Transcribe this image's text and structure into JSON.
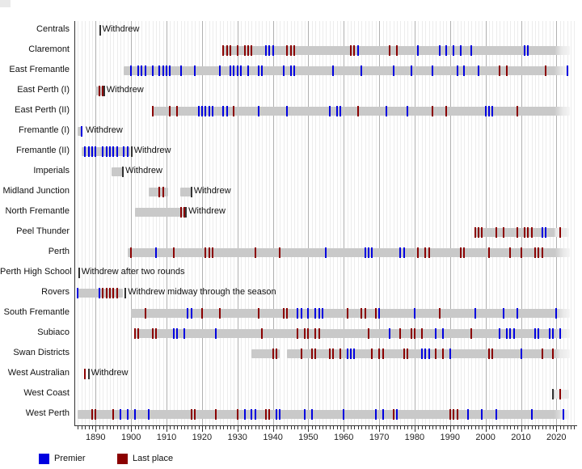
{
  "legend": {
    "premier_label": "Premier",
    "last_label": "Last place"
  },
  "colors": {
    "premier": "#0000e0",
    "last_place": "#8b0000",
    "bar": "#c9c9c9",
    "bar_recent": "#e9e9e9",
    "withdrew_tick": "#333333",
    "grid_minor": "#ececec",
    "grid_major": "#b0b0b0",
    "axis_line": "#333333",
    "text": "#111111"
  },
  "axis": {
    "year_start": 1885,
    "year_end": 2025.8,
    "decade_labels": [
      "1890",
      "1900",
      "1910",
      "1920",
      "1930",
      "1940",
      "1950",
      "1960",
      "1970",
      "1980",
      "1990",
      "2000",
      "2010",
      "2020"
    ],
    "decade_values": [
      1890,
      1900,
      1910,
      1920,
      1930,
      1940,
      1950,
      1960,
      1970,
      1980,
      1990,
      2000,
      2010,
      2020
    ]
  },
  "chart_data": {
    "type": "timeline-gantt",
    "unit": "year",
    "recent_shade_from": 2019.4,
    "ongoing_end": 2023.7,
    "clubs": [
      {
        "name": "Centrals",
        "segments": [],
        "ongoing": false,
        "premier_years": [],
        "last_years": [],
        "withdrew": {
          "year": 1891.2,
          "label": "Withdrew",
          "tick": true
        }
      },
      {
        "name": "Claremont",
        "segments": [
          [
            1925.8,
            2023.7
          ]
        ],
        "ongoing": true,
        "premier_years": [
          1938,
          1939,
          1940,
          1964,
          1981,
          1987,
          1989,
          1991,
          1993,
          1996,
          2011,
          2012
        ],
        "last_years": [
          1926,
          1927,
          1928,
          1930,
          1932,
          1933,
          1934,
          1944,
          1945,
          1946,
          1962,
          1963,
          1973,
          1975
        ]
      },
      {
        "name": "East Fremantle",
        "segments": [
          [
            1898,
            2023.7
          ]
        ],
        "ongoing": true,
        "premier_years": [
          1900,
          1902,
          1903,
          1904,
          1906,
          1908,
          1909,
          1910,
          1911,
          1914,
          1918,
          1925,
          1928,
          1929,
          1930,
          1931,
          1933,
          1936,
          1937,
          1943,
          1945,
          1946,
          1957,
          1965,
          1974,
          1979,
          1985,
          1992,
          1994,
          1998,
          2023
        ],
        "last_years": [
          2004,
          2006,
          2017
        ]
      },
      {
        "name": "East Perth (I)",
        "segments": [
          [
            1890,
            1892.2
          ]
        ],
        "ongoing": false,
        "premier_years": [],
        "last_years": [
          1891,
          1892
        ],
        "withdrew": {
          "year": 1892.4,
          "label": "Withdrew",
          "tick": true
        }
      },
      {
        "name": "East Perth (II)",
        "segments": [
          [
            1906,
            2023.7
          ]
        ],
        "ongoing": true,
        "premier_years": [
          1919,
          1920,
          1921,
          1922,
          1923,
          1926,
          1927,
          1936,
          1944,
          1956,
          1958,
          1959,
          1972,
          1978,
          2000,
          2001,
          2002
        ],
        "last_years": [
          1906,
          1911,
          1913,
          1929,
          1964,
          1985,
          1989,
          2009
        ]
      },
      {
        "name": "Fremantle (I)",
        "segments": [
          [
            1885,
            1886.3
          ]
        ],
        "ongoing": false,
        "premier_years": [
          1886
        ],
        "last_years": [],
        "withdrew": {
          "year": 1886.5,
          "label": "Withdrew",
          "tick": false
        }
      },
      {
        "name": "Fremantle (II)",
        "segments": [
          [
            1886,
            1899.8
          ]
        ],
        "ongoing": false,
        "premier_years": [
          1887,
          1888,
          1889,
          1890,
          1892,
          1893,
          1894,
          1895,
          1896,
          1898,
          1899
        ],
        "last_years": [],
        "withdrew": {
          "year": 1900.1,
          "label": "Withdrew",
          "tick": true
        }
      },
      {
        "name": "Imperials",
        "segments": [
          [
            1894.5,
            1897.5
          ]
        ],
        "ongoing": false,
        "premier_years": [],
        "last_years": [],
        "withdrew": {
          "year": 1897.7,
          "label": "Withdrew",
          "tick": true
        }
      },
      {
        "name": "Midland Junction",
        "segments": [
          [
            1905,
            1910.5
          ],
          [
            1913.8,
            1916.8
          ]
        ],
        "ongoing": false,
        "premier_years": [],
        "last_years": [
          1908,
          1909
        ],
        "withdrew": {
          "year": 1917.0,
          "label": "Withdrew",
          "tick": true
        }
      },
      {
        "name": "North Fremantle",
        "segments": [
          [
            1901,
            1915.2
          ]
        ],
        "ongoing": false,
        "premier_years": [],
        "last_years": [
          1914,
          1915
        ],
        "withdrew": {
          "year": 1915.5,
          "label": "Withdrew",
          "tick": true
        }
      },
      {
        "name": "Peel Thunder",
        "segments": [
          [
            1996.8,
            2023.7
          ]
        ],
        "ongoing": true,
        "premier_years": [
          2016,
          2017
        ],
        "last_years": [
          1997,
          1998,
          1999,
          2003,
          2005,
          2009,
          2011,
          2012,
          2013,
          2021
        ]
      },
      {
        "name": "Perth",
        "segments": [
          [
            1899,
            2023.7
          ]
        ],
        "ongoing": true,
        "premier_years": [
          1907,
          1955,
          1966,
          1967,
          1968,
          1976,
          1977
        ],
        "last_years": [
          1900,
          1912,
          1921,
          1922,
          1923,
          1935,
          1942,
          1981,
          1983,
          1984,
          1993,
          1994,
          2001,
          2007,
          2010,
          2014,
          2015,
          2016
        ]
      },
      {
        "name": "Perth High School",
        "segments": [],
        "ongoing": false,
        "premier_years": [],
        "last_years": [],
        "withdrew": {
          "year": 1885.3,
          "label": "Withdrew after two rounds",
          "tick": true
        }
      },
      {
        "name": "Rovers",
        "segments": [
          [
            1885,
            1897.6
          ]
        ],
        "ongoing": false,
        "premier_years": [
          1885,
          1891
        ],
        "last_years": [
          1892,
          1893,
          1894,
          1895,
          1896
        ],
        "withdrew": {
          "year": 1898.4,
          "label": "Withdrew midway through the season",
          "tick": true
        }
      },
      {
        "name": "South Fremantle",
        "segments": [
          [
            1900,
            2023.7
          ]
        ],
        "ongoing": true,
        "premier_years": [
          1916,
          1917,
          1947,
          1948,
          1950,
          1952,
          1953,
          1954,
          1970,
          1980,
          1997,
          2005,
          2009,
          2020
        ],
        "last_years": [
          1904,
          1920,
          1925,
          1936,
          1943,
          1944,
          1961,
          1965,
          1966,
          1969,
          1987
        ]
      },
      {
        "name": "Subiaco",
        "segments": [
          [
            1900.8,
            2023.7
          ]
        ],
        "ongoing": true,
        "premier_years": [
          1912,
          1913,
          1915,
          1924,
          1973,
          1986,
          1988,
          2004,
          2006,
          2007,
          2008,
          2014,
          2015,
          2018,
          2019,
          2021
        ],
        "last_years": [
          1901,
          1902,
          1906,
          1907,
          1937,
          1947,
          1949,
          1950,
          1952,
          1953,
          1967,
          1976,
          1979,
          1980,
          1982,
          1996
        ]
      },
      {
        "name": "Swan Districts",
        "segments": [
          [
            1934,
            1942
          ],
          [
            1944,
            2023.7
          ]
        ],
        "ongoing": true,
        "premier_years": [
          1961,
          1962,
          1963,
          1982,
          1983,
          1984,
          1990,
          2010
        ],
        "last_years": [
          1940,
          1941,
          1948,
          1951,
          1952,
          1956,
          1957,
          1959,
          1968,
          1970,
          1971,
          1977,
          1978,
          1986,
          1988,
          2001,
          2002,
          2016,
          2019
        ]
      },
      {
        "name": "West Australian",
        "segments": [],
        "ongoing": false,
        "premier_years": [],
        "last_years": [
          1887
        ],
        "withdrew": {
          "year": 1888.0,
          "label": "Withdrew",
          "tick": true
        }
      },
      {
        "name": "West Coast",
        "segments": [
          [
            2019,
            2023.7
          ]
        ],
        "ongoing": true,
        "premier_years": [],
        "last_years": [
          2021
        ],
        "joined_tick_year": 2019
      },
      {
        "name": "West Perth",
        "segments": [
          [
            1885,
            2023.7
          ]
        ],
        "ongoing": true,
        "premier_years": [
          1897,
          1899,
          1901,
          1905,
          1932,
          1934,
          1935,
          1941,
          1942,
          1949,
          1951,
          1960,
          1969,
          1971,
          1975,
          1995,
          1999,
          2003,
          2013,
          2022
        ],
        "last_years": [
          1889,
          1890,
          1895,
          1917,
          1918,
          1924,
          1930,
          1938,
          1939,
          1974,
          1990,
          1991,
          1992
        ]
      }
    ]
  }
}
